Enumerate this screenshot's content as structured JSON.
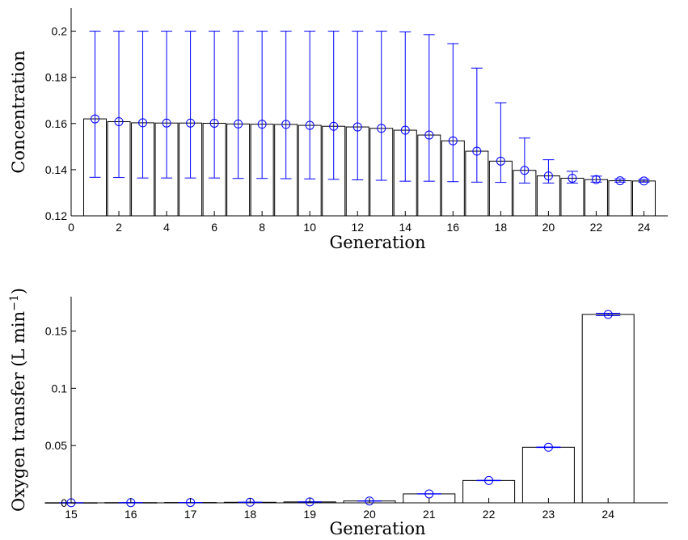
{
  "chart_data": [
    {
      "type": "bar",
      "title": "",
      "xlabel": "Generation",
      "ylabel": "Concentration",
      "xlim": [
        0,
        25
      ],
      "ylim": [
        0.12,
        0.21
      ],
      "x_ticks": [
        0,
        2,
        4,
        6,
        8,
        10,
        12,
        14,
        16,
        18,
        20,
        22,
        24
      ],
      "y_ticks": [
        0.12,
        0.14,
        0.16,
        0.18,
        0.2
      ],
      "y_tick_labels": [
        "0.12",
        "0.14",
        "0.16",
        "0.18",
        "0.2"
      ],
      "categories": [
        1,
        2,
        3,
        4,
        5,
        6,
        7,
        8,
        9,
        10,
        11,
        12,
        13,
        14,
        15,
        16,
        17,
        18,
        19,
        20,
        21,
        22,
        23,
        24
      ],
      "values": [
        0.162,
        0.1608,
        0.1603,
        0.1602,
        0.1602,
        0.1601,
        0.1598,
        0.1597,
        0.1596,
        0.1592,
        0.1588,
        0.1585,
        0.1579,
        0.1571,
        0.155,
        0.1525,
        0.148,
        0.1437,
        0.1397,
        0.1373,
        0.1363,
        0.1357,
        0.1352,
        0.1351
      ],
      "error_low": [
        0.1367,
        0.1366,
        0.1364,
        0.1364,
        0.1364,
        0.1364,
        0.1362,
        0.1362,
        0.1361,
        0.136,
        0.1358,
        0.1356,
        0.1354,
        0.135,
        0.135,
        0.1348,
        0.1346,
        0.1345,
        0.1342,
        0.1342,
        0.1342,
        0.1346,
        0.1346,
        0.1346
      ],
      "error_high": [
        0.2,
        0.2,
        0.2,
        0.2,
        0.2,
        0.2,
        0.2,
        0.2,
        0.2,
        0.2,
        0.2,
        0.2,
        0.2,
        0.1997,
        0.1985,
        0.1946,
        0.184,
        0.169,
        0.1537,
        0.1443,
        0.1393,
        0.1372,
        0.136,
        0.1358
      ],
      "bar_color": "#ffffff",
      "bar_edge_color": "#000000",
      "marker_color": "#0000ff",
      "grid": false
    },
    {
      "type": "bar",
      "title": "",
      "xlabel": "Generation",
      "ylabel": "Oxygen transfer (L min",
      "ylabel_superscript": "−1",
      "ylabel_close": ")",
      "xlim": [
        15,
        25
      ],
      "ylim": [
        0,
        0.18
      ],
      "y_ticks": [
        0,
        0.05,
        0.1,
        0.15
      ],
      "y_tick_labels": [
        "0",
        "0.05",
        "0.1",
        "0.15"
      ],
      "x_ticks": [
        15,
        16,
        17,
        18,
        19,
        20,
        21,
        22,
        23,
        24
      ],
      "categories": [
        15,
        16,
        17,
        18,
        19,
        20,
        21,
        22,
        23,
        24
      ],
      "values": [
        0.0001,
        0.0002,
        0.0003,
        0.0005,
        0.0008,
        0.0016,
        0.0078,
        0.0195,
        0.0485,
        0.1645
      ],
      "error_low": [
        0.0001,
        0.0002,
        0.0003,
        0.0005,
        0.0007,
        0.0015,
        0.0077,
        0.0193,
        0.0483,
        0.1635
      ],
      "error_high": [
        0.0001,
        0.0002,
        0.0003,
        0.0005,
        0.0009,
        0.0017,
        0.0079,
        0.0197,
        0.0487,
        0.1655
      ],
      "bar_color": "#ffffff",
      "bar_edge_color": "#000000",
      "marker_color": "#0000ff",
      "grid": false
    }
  ]
}
